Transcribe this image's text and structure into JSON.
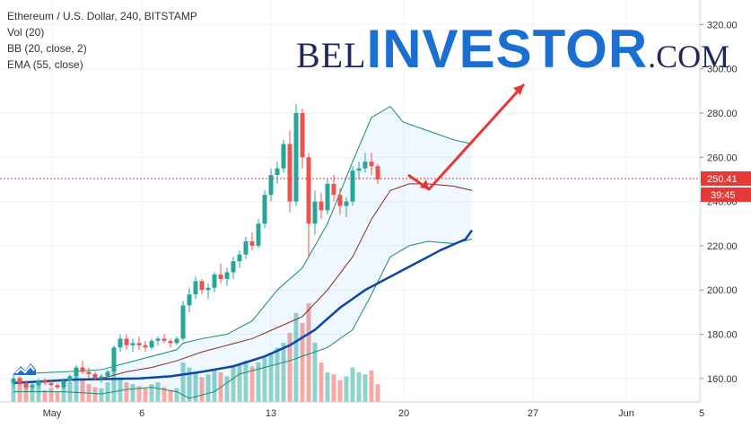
{
  "legend": {
    "title": "Ethereum / U.S. Dollar, 240, BITSTAMP",
    "vol": "Vol (20)",
    "bb": "BB (20, close, 2)",
    "ema": "EMA (55, close)"
  },
  "brand": {
    "part1": "BEL",
    "part2": "INVESTOR",
    "part3": ".COM"
  },
  "colors": {
    "up": "#26a69a",
    "down": "#ef5350",
    "ema": "#0d47a1",
    "bb_mid": "#8b2a1a",
    "bb_band": "#1a8a6a",
    "bb_fill": "rgba(33,150,243,0.07)",
    "last_price": "#e53935",
    "arrow": "#e53935",
    "brand": "#1a6fd0"
  },
  "price_axis": {
    "ticks": [
      "320.00",
      "300.00",
      "280.00",
      "260.00",
      "240.00",
      "220.00",
      "200.00",
      "180.00",
      "160.00"
    ]
  },
  "time_axis": {
    "ticks": [
      "May",
      "6",
      "13",
      "20",
      "27",
      "Jun",
      "5"
    ]
  },
  "last_price": {
    "price": "250.41",
    "countdown": "39:45"
  },
  "chart_data": {
    "type": "candlestick",
    "title": "Ethereum / U.S. Dollar, 240, BITSTAMP",
    "timeframe": "4h",
    "ylim": [
      145,
      325
    ],
    "last_price": 250.41,
    "series": [
      {
        "name": "EMA (55, close)",
        "kind": "line",
        "points": [
          [
            0,
            158.0
          ],
          [
            10,
            159.5
          ],
          [
            20,
            160.0
          ],
          [
            25,
            161.0
          ],
          [
            30,
            163.0
          ],
          [
            35,
            165.5
          ],
          [
            40,
            170.0
          ],
          [
            44,
            175.0
          ],
          [
            48,
            182.0
          ],
          [
            52,
            192.0
          ],
          [
            56,
            200.0
          ],
          [
            60,
            206.0
          ],
          [
            64,
            212.0
          ],
          [
            68,
            218.0
          ],
          [
            72,
            223.0
          ],
          [
            73,
            227.0
          ]
        ]
      },
      {
        "name": "BB (20, close, 2)",
        "kind": "band",
        "upper": [
          [
            0,
            162
          ],
          [
            8,
            163
          ],
          [
            14,
            164
          ],
          [
            18,
            167
          ],
          [
            22,
            170
          ],
          [
            26,
            173
          ],
          [
            27,
            176
          ],
          [
            30,
            178
          ],
          [
            34,
            180
          ],
          [
            38,
            186
          ],
          [
            42,
            200
          ],
          [
            46,
            210
          ],
          [
            50,
            230
          ],
          [
            54,
            258
          ],
          [
            57,
            278
          ],
          [
            60,
            283
          ],
          [
            62,
            276
          ],
          [
            66,
            272
          ],
          [
            70,
            268
          ],
          [
            73,
            266
          ]
        ],
        "middle": [
          [
            0,
            158
          ],
          [
            8,
            159
          ],
          [
            14,
            160
          ],
          [
            18,
            163
          ],
          [
            22,
            165
          ],
          [
            26,
            168
          ],
          [
            30,
            172
          ],
          [
            34,
            175
          ],
          [
            38,
            178
          ],
          [
            42,
            183
          ],
          [
            46,
            188
          ],
          [
            50,
            200
          ],
          [
            54,
            215
          ],
          [
            57,
            232
          ],
          [
            60,
            245
          ],
          [
            63,
            248
          ],
          [
            66,
            248
          ],
          [
            70,
            247
          ],
          [
            73,
            245
          ]
        ],
        "lower": [
          [
            0,
            154
          ],
          [
            8,
            154
          ],
          [
            14,
            153
          ],
          [
            18,
            155
          ],
          [
            22,
            156
          ],
          [
            26,
            154
          ],
          [
            28,
            151
          ],
          [
            32,
            154
          ],
          [
            36,
            162
          ],
          [
            40,
            165
          ],
          [
            44,
            168
          ],
          [
            46,
            170
          ],
          [
            50,
            174
          ],
          [
            54,
            182
          ],
          [
            57,
            198
          ],
          [
            60,
            215
          ],
          [
            63,
            220
          ],
          [
            66,
            222
          ],
          [
            70,
            221
          ],
          [
            73,
            223
          ]
        ]
      }
    ],
    "candles": [
      [
        158,
        162,
        156,
        160
      ],
      [
        160,
        161,
        157,
        158
      ],
      [
        158,
        159,
        155,
        156
      ],
      [
        156,
        158,
        154,
        157
      ],
      [
        157,
        160,
        156,
        159
      ],
      [
        159,
        160,
        157,
        158
      ],
      [
        158,
        159,
        156,
        157
      ],
      [
        157,
        158,
        155,
        156
      ],
      [
        156,
        160,
        155,
        159
      ],
      [
        159,
        162,
        158,
        161
      ],
      [
        161,
        166,
        160,
        165
      ],
      [
        165,
        168,
        162,
        163
      ],
      [
        163,
        165,
        160,
        162
      ],
      [
        162,
        163,
        159,
        160
      ],
      [
        160,
        162,
        158,
        161
      ],
      [
        161,
        164,
        160,
        163
      ],
      [
        163,
        175,
        162,
        174
      ],
      [
        174,
        180,
        172,
        178
      ],
      [
        178,
        180,
        173,
        175
      ],
      [
        175,
        178,
        172,
        176
      ],
      [
        176,
        179,
        173,
        175
      ],
      [
        175,
        177,
        172,
        174
      ],
      [
        174,
        178,
        173,
        177
      ],
      [
        177,
        179,
        175,
        178
      ],
      [
        178,
        180,
        176,
        177
      ],
      [
        177,
        178,
        174,
        176
      ],
      [
        176,
        179,
        175,
        178
      ],
      [
        178,
        195,
        177,
        193
      ],
      [
        193,
        201,
        190,
        198
      ],
      [
        198,
        206,
        196,
        204
      ],
      [
        204,
        205,
        198,
        200
      ],
      [
        200,
        203,
        196,
        201
      ],
      [
        201,
        208,
        199,
        207
      ],
      [
        207,
        212,
        203,
        205
      ],
      [
        205,
        210,
        202,
        208
      ],
      [
        208,
        215,
        205,
        213
      ],
      [
        213,
        218,
        210,
        216
      ],
      [
        216,
        224,
        214,
        222
      ],
      [
        222,
        226,
        218,
        220
      ],
      [
        220,
        232,
        219,
        230
      ],
      [
        230,
        245,
        228,
        243
      ],
      [
        243,
        255,
        240,
        252
      ],
      [
        252,
        258,
        248,
        255
      ],
      [
        255,
        268,
        253,
        266
      ],
      [
        266,
        272,
        235,
        240
      ],
      [
        240,
        284,
        238,
        280
      ],
      [
        280,
        282,
        255,
        260
      ],
      [
        260,
        262,
        215,
        230
      ],
      [
        230,
        245,
        225,
        240
      ],
      [
        240,
        244,
        232,
        236
      ],
      [
        236,
        250,
        234,
        248
      ],
      [
        248,
        252,
        240,
        243
      ],
      [
        243,
        246,
        234,
        238
      ],
      [
        238,
        242,
        233,
        240
      ],
      [
        240,
        256,
        238,
        254
      ],
      [
        254,
        258,
        250,
        255
      ],
      [
        255,
        262,
        253,
        258
      ],
      [
        258,
        262,
        252,
        256
      ],
      [
        256,
        257,
        248,
        250
      ]
    ],
    "volume": [
      20,
      25,
      15,
      18,
      22,
      12,
      14,
      10,
      16,
      20,
      26,
      22,
      18,
      15,
      14,
      20,
      30,
      25,
      20,
      18,
      16,
      14,
      18,
      20,
      15,
      12,
      14,
      40,
      35,
      30,
      25,
      28,
      32,
      30,
      26,
      35,
      38,
      42,
      36,
      40,
      45,
      50,
      55,
      60,
      70,
      90,
      80,
      100,
      60,
      40,
      30,
      28,
      22,
      26,
      35,
      30,
      28,
      32,
      18
    ]
  }
}
